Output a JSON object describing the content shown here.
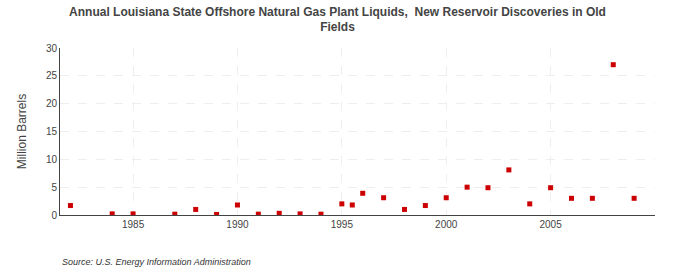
{
  "chart_data": {
    "type": "scatter",
    "title": "Annual Louisiana State Offshore Natural Gas Plant Liquids,  New Reservoir Discoveries in Old\nFields",
    "ylabel": "Million Barrels",
    "source": "Source: U.S. Energy Information Administration",
    "x": [
      1982,
      1984,
      1985,
      1987,
      1988,
      1989,
      1990,
      1991,
      1992,
      1993,
      1994,
      1995,
      1995.5,
      1996,
      1997,
      1998,
      1999,
      2000,
      2001,
      2002,
      2003,
      2004,
      2005,
      2006,
      2007,
      2008,
      2009
    ],
    "values": [
      1.7,
      0.2,
      0.2,
      0.15,
      1.0,
      0.1,
      1.8,
      0.15,
      0.3,
      0.2,
      0.15,
      2.0,
      1.8,
      3.9,
      3.1,
      1.0,
      1.7,
      3.1,
      5.0,
      4.9,
      8.1,
      2.0,
      4.9,
      3.0,
      3.0,
      27.0,
      3.0
    ],
    "color": "#cc0000",
    "marker": "square",
    "xlim": [
      1981.5,
      2010
    ],
    "xticks": [
      1985,
      1990,
      1995,
      2000,
      2005
    ],
    "ylim": [
      0,
      30
    ],
    "yticks": [
      0,
      5,
      10,
      15,
      20,
      25,
      30
    ],
    "grid": true
  }
}
